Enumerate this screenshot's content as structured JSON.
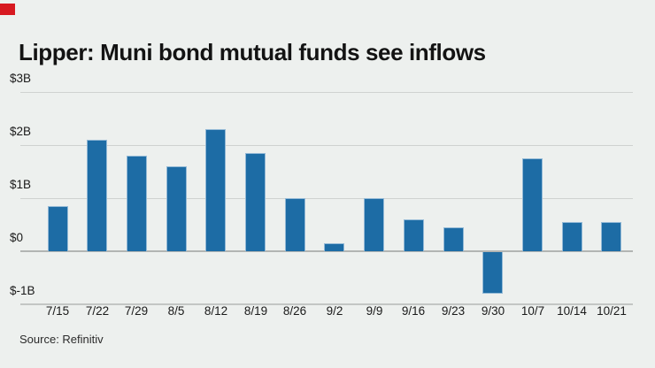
{
  "brand": {
    "accent_color": "#d71920"
  },
  "header": {
    "title": "Lipper: Muni bond mutual funds see inflows"
  },
  "source": {
    "text": "Source: Refinitiv"
  },
  "theme": {
    "background": "#edf0ee",
    "bar_color": "#1d6ca5",
    "bar_edge_color": "#93b9d6",
    "gridline_color": "#cfd2d0",
    "zero_line_color": "#b2b5b3",
    "bottom_line_color": "#c3c6c4",
    "text_color": "#1a1a1a"
  },
  "chart_data": {
    "type": "bar",
    "title": "Lipper: Muni bond mutual funds see inflows",
    "xlabel": "",
    "ylabel": "",
    "units": "billions of dollars",
    "categories": [
      "7/15",
      "7/22",
      "7/29",
      "8/5",
      "8/12",
      "8/19",
      "8/26",
      "9/2",
      "9/9",
      "9/16",
      "9/23",
      "9/30",
      "10/7",
      "10/14",
      "10/21"
    ],
    "values": [
      0.85,
      2.1,
      1.8,
      1.6,
      2.3,
      1.85,
      1.0,
      0.15,
      1.0,
      0.6,
      0.45,
      -0.8,
      1.75,
      0.55,
      0.55
    ],
    "y_ticks": [
      {
        "value": 3,
        "label": "$3B"
      },
      {
        "value": 2,
        "label": "$2B"
      },
      {
        "value": 1,
        "label": "$1B"
      },
      {
        "value": 0,
        "label": "$0"
      },
      {
        "value": -1,
        "label": "$-1B"
      }
    ],
    "ylim": [
      -1,
      3
    ],
    "grid": "horizontal",
    "legend": "none",
    "source": "Source: Refinitiv"
  }
}
